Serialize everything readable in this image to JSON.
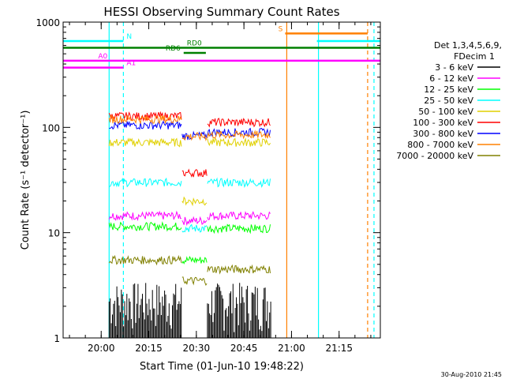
{
  "chart_data": {
    "type": "line",
    "title": "HESSI Observing Summary Count Rates",
    "xlabel": "Start Time (01-Jun-10 19:48:22)",
    "ylabel": "Count Rate (s⁻¹ detector⁻¹)",
    "x_unit": "minutes since 01-Jun-10 19:48:22",
    "xlim": [
      0,
      100
    ],
    "ylim": [
      1,
      1000
    ],
    "y_scale": "log",
    "x_ticks": [
      {
        "t": 12,
        "label": "20:00"
      },
      {
        "t": 27,
        "label": "20:15"
      },
      {
        "t": 42,
        "label": "20:30"
      },
      {
        "t": 57,
        "label": "20:45"
      },
      {
        "t": 72,
        "label": "21:00"
      },
      {
        "t": 87,
        "label": "21:15"
      }
    ],
    "y_ticks": [
      {
        "v": 1,
        "label": "1"
      },
      {
        "v": 10,
        "label": "10"
      },
      {
        "v": 100,
        "label": "100"
      },
      {
        "v": 1000,
        "label": "1000"
      }
    ],
    "legend_title_1": "Det 1,3,4,5,6,9,",
    "legend_title_2": "FDecim 1",
    "legend_position": "right",
    "footer_date": "30-Aug-2010 21:45",
    "series": [
      {
        "name": "3 - 6 keV",
        "color": "#000000",
        "segments": [
          [
            14.5,
            37.5,
            1.6
          ],
          [
            45.5,
            65.5,
            1.6
          ]
        ]
      },
      {
        "name": "6 - 12 keV",
        "color": "#ff00ff",
        "segments": [
          [
            14.5,
            37.5,
            14.5
          ],
          [
            37.5,
            45.5,
            13
          ],
          [
            45.5,
            65.5,
            14.5
          ]
        ]
      },
      {
        "name": "12 - 25 keV",
        "color": "#00ff00",
        "segments": [
          [
            14.5,
            37.5,
            11.5
          ],
          [
            37.5,
            45.5,
            5.5
          ],
          [
            45.5,
            65.5,
            11
          ]
        ]
      },
      {
        "name": "25 - 50 keV",
        "color": "#00ffff",
        "segments": [
          [
            14.5,
            37.5,
            30
          ],
          [
            37.5,
            45.5,
            11
          ],
          [
            45.5,
            65.5,
            30
          ]
        ]
      },
      {
        "name": "50 - 100 keV",
        "color": "#e0d000",
        "segments": [
          [
            14.5,
            37.5,
            72
          ],
          [
            37.5,
            45.5,
            20
          ],
          [
            45.5,
            65.5,
            72
          ]
        ]
      },
      {
        "name": "100 - 300 keV",
        "color": "#ff0000",
        "segments": [
          [
            14.5,
            37.5,
            128
          ],
          [
            37.5,
            45.5,
            37
          ],
          [
            45.5,
            65.5,
            112
          ]
        ]
      },
      {
        "name": "300 - 800 keV",
        "color": "#0000ff",
        "segments": [
          [
            14.5,
            37.5,
            105
          ],
          [
            37.5,
            45.5,
            83
          ],
          [
            45.5,
            65.5,
            90
          ]
        ]
      },
      {
        "name": "800 - 7000 keV",
        "color": "#ff8000",
        "segments": [
          [
            14.5,
            37.5,
            120
          ],
          [
            37.5,
            45.5,
            82
          ],
          [
            45.5,
            65.5,
            85
          ]
        ]
      },
      {
        "name": "7000 - 20000 keV",
        "color": "#808000",
        "segments": [
          [
            14.5,
            37.5,
            5.5
          ],
          [
            37.5,
            45.5,
            3.5
          ],
          [
            45.5,
            65.5,
            4.5
          ]
        ]
      }
    ],
    "flags": [
      {
        "label": "N",
        "color": "#00ffff",
        "y": 660,
        "segments": [
          [
            0,
            19
          ],
          [
            80,
            100
          ]
        ]
      },
      {
        "label": "RD0",
        "color": "#008000",
        "y": 570,
        "segments": [
          [
            0,
            100
          ]
        ]
      },
      {
        "label": "RD6",
        "color": "#008000",
        "y": 510,
        "segments": [
          [
            38,
            45
          ]
        ]
      },
      {
        "label": "A0",
        "color": "#ff00ff",
        "y": 430,
        "segments": [
          [
            0,
            100
          ]
        ]
      },
      {
        "label": "A1",
        "color": "#ff00ff",
        "y": 370,
        "segments": [
          [
            0,
            19
          ]
        ]
      },
      {
        "label": "S",
        "color": "#ff8000",
        "y": 780,
        "segments": [
          [
            70,
            96
          ]
        ]
      }
    ],
    "vertical_markers": [
      {
        "t": 14.5,
        "color": "#00ffff",
        "style": "solid"
      },
      {
        "t": 19,
        "color": "#00ffff",
        "style": "dashed"
      },
      {
        "t": 70.5,
        "color": "#ff8000",
        "style": "solid"
      },
      {
        "t": 80.5,
        "color": "#00ffff",
        "style": "solid"
      },
      {
        "t": 96,
        "color": "#ff8000",
        "style": "dashed"
      },
      {
        "t": 98,
        "color": "#00ffff",
        "style": "dashed"
      }
    ]
  }
}
